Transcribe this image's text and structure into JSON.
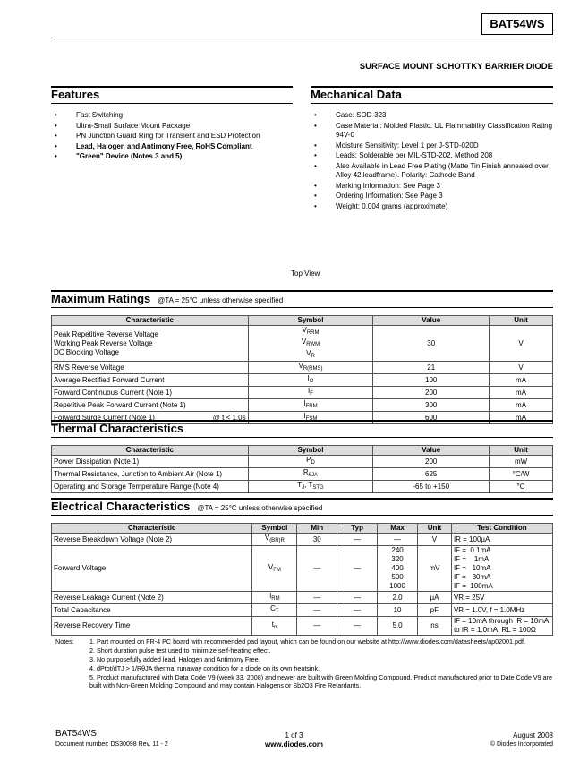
{
  "header": {
    "part": "BAT54WS",
    "subtitle": "SURFACE MOUNT SCHOTTKY BARRIER DIODE"
  },
  "features": {
    "title": "Features",
    "items": [
      {
        "text": "Fast Switching",
        "bold": false
      },
      {
        "text": "Ultra-Small Surface Mount Package",
        "bold": false
      },
      {
        "text": "PN Junction Guard Ring for Transient and ESD Protection",
        "bold": false
      },
      {
        "text": "Lead, Halogen and Antimony Free, RoHS Compliant",
        "bold": true
      },
      {
        "text": "\"Green\" Device (Notes 3 and 5)",
        "bold": true
      }
    ]
  },
  "mechanical": {
    "title": "Mechanical Data",
    "items": [
      "Case: SOD-323",
      "Case Material:  Molded Plastic.  UL Flammability Classification Rating 94V-0",
      "Moisture Sensitivity: Level 1 per J-STD-020D",
      "Leads: Solderable per MIL-STD-202, Method 208",
      "Also Available in Lead Free Plating (Matte Tin Finish annealed over Alloy 42 leadframe). Polarity: Cathode Band",
      "Marking Information: See Page 3",
      "Ordering Information: See Page 3",
      "Weight: 0.004 grams (approximate)"
    ]
  },
  "top_view": "Top View",
  "max_ratings": {
    "title": "Maximum Ratings",
    "condition": "@TA = 25°C unless otherwise specified",
    "headers": [
      "Characteristic",
      "Symbol",
      "Value",
      "Unit"
    ],
    "rows": [
      {
        "char": [
          "Peak Repetitive Reverse Voltage",
          "Working Peak Reverse Voltage",
          "DC Blocking Voltage"
        ],
        "sym": [
          [
            "V",
            "RRM"
          ],
          [
            "V",
            "RWM"
          ],
          [
            "V",
            "R"
          ]
        ],
        "value": "30",
        "unit": "V"
      },
      {
        "char": [
          "RMS Reverse Voltage"
        ],
        "sym": [
          [
            "V",
            "R(RMS)"
          ]
        ],
        "value": "21",
        "unit": "V"
      },
      {
        "char": [
          "Average Rectified Forward Current"
        ],
        "sym": [
          [
            "I",
            "O"
          ]
        ],
        "value": "100",
        "unit": "mA"
      },
      {
        "char": [
          "Forward Continuous Current (Note 1)"
        ],
        "sym": [
          [
            "I",
            "F"
          ]
        ],
        "value": "200",
        "unit": "mA"
      },
      {
        "char": [
          "Repetitive Peak Forward Current (Note 1)"
        ],
        "sym": [
          [
            "I",
            "FRM"
          ]
        ],
        "value": "300",
        "unit": "mA"
      },
      {
        "char": [
          "Forward Surge Current (Note 1)"
        ],
        "cond": "@ t < 1.0s",
        "sym": [
          [
            "I",
            "FSM"
          ]
        ],
        "value": "600",
        "unit": "mA"
      }
    ]
  },
  "thermal": {
    "title": "Thermal Characteristics",
    "headers": [
      "Characteristic",
      "Symbol",
      "Value",
      "Unit"
    ],
    "rows": [
      {
        "char": [
          "Power Dissipation (Note 1)"
        ],
        "sym": [
          [
            "P",
            "D"
          ]
        ],
        "value": "200",
        "unit": "mW"
      },
      {
        "char": [
          "Thermal Resistance, Junction to Ambient Air (Note 1)"
        ],
        "sym": [
          [
            "R",
            "θJA"
          ]
        ],
        "value": "625",
        "unit": "°C/W"
      },
      {
        "char": [
          "Operating and Storage Temperature Range (Note 4)"
        ],
        "sym": [
          [
            "T",
            "J"
          ],
          [
            ", T",
            "STG"
          ]
        ],
        "value": "-65 to +150",
        "unit": "°C"
      }
    ]
  },
  "electrical": {
    "title": "Electrical Characteristics",
    "condition": "@TA = 25°C unless otherwise specified",
    "headers": [
      "Characteristic",
      "Symbol",
      "Min",
      "Typ",
      "Max",
      "Unit",
      "Test Condition"
    ],
    "rows": [
      {
        "char": "Reverse Breakdown Voltage (Note 2)",
        "sym": [
          "V",
          "(BR)R"
        ],
        "min": "30",
        "typ": "—",
        "max": [
          "—"
        ],
        "unit": "V",
        "test": [
          "IR = 100µA"
        ]
      },
      {
        "char": "Forward Voltage",
        "sym": [
          "V",
          "FM"
        ],
        "min": "—",
        "typ": "—",
        "max": [
          "240",
          "320",
          "400",
          "500",
          "1000"
        ],
        "unit": "mV",
        "test": [
          "IF =  0.1mA",
          "IF =    1mA",
          "IF =   10mA",
          "IF =   30mA",
          "IF =  100mA"
        ]
      },
      {
        "char": "Reverse Leakage Current (Note 2)",
        "sym": [
          "I",
          "RM"
        ],
        "min": "—",
        "typ": "—",
        "max": [
          "2.0"
        ],
        "unit": "µA",
        "test": [
          "VR = 25V"
        ]
      },
      {
        "char": "Total Capacitance",
        "sym": [
          "C",
          "T"
        ],
        "min": "—",
        "typ": "—",
        "max": [
          "10"
        ],
        "unit": "pF",
        "test": [
          "VR = 1.0V, f = 1.0MHz"
        ]
      },
      {
        "char": "Reverse Recovery Time",
        "sym": [
          "t",
          "rr"
        ],
        "min": "—",
        "typ": "—",
        "max": [
          "5.0"
        ],
        "unit": "ns",
        "test": [
          "IF = 10mA through IR = 10mA",
          "to IR = 1.0mA, RL = 100Ω"
        ]
      }
    ]
  },
  "notes": {
    "label": "Notes:",
    "items": [
      "1. Part mounted on FR-4 PC board with recommended pad layout, which can be found on our website at http://www.diodes.com/datasheets/ap02001.pdf.",
      "2. Short duration pulse test used to minimize self-heating effect.",
      "3. No purposefully added lead. Halogen and Antimony Free.",
      "4. dPtot/dTJ > 1/RθJA  thermal runaway condition for a diode on its own heatsink.",
      "5. Product manufactured with Data Code V9 (week 33, 2008) and newer are built with Green Molding Compound. Product manufactured prior to Date Code V9 are built with Non-Green Molding Compound and may contain Halogens or Sb2O3 Fire Retardants."
    ]
  },
  "footer": {
    "part": "BAT54WS",
    "docnum": "Document number: DS30098 Rev. 11 - 2",
    "page": "1 of 3",
    "url": "www.diodes.com",
    "date": "August 2008",
    "copyright": "© Diodes Incorporated"
  }
}
